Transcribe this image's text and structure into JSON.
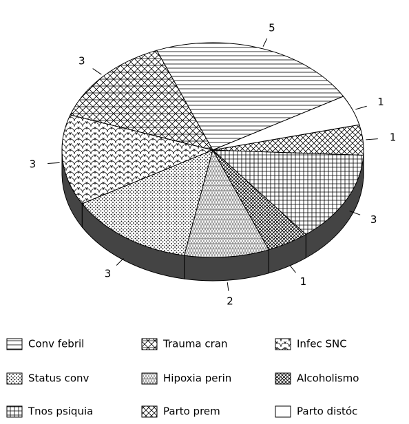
{
  "chart_data": {
    "type": "pie",
    "categories": [
      "Conv febril",
      "Trauma cran",
      "Infec SNC",
      "Status conv",
      "Hipoxia perin",
      "Alcoholismo",
      "Tnos psiquia",
      "Parto prem",
      "Parto distóc"
    ],
    "values": [
      5,
      3,
      3,
      3,
      2,
      1,
      3,
      1,
      1
    ]
  }
}
